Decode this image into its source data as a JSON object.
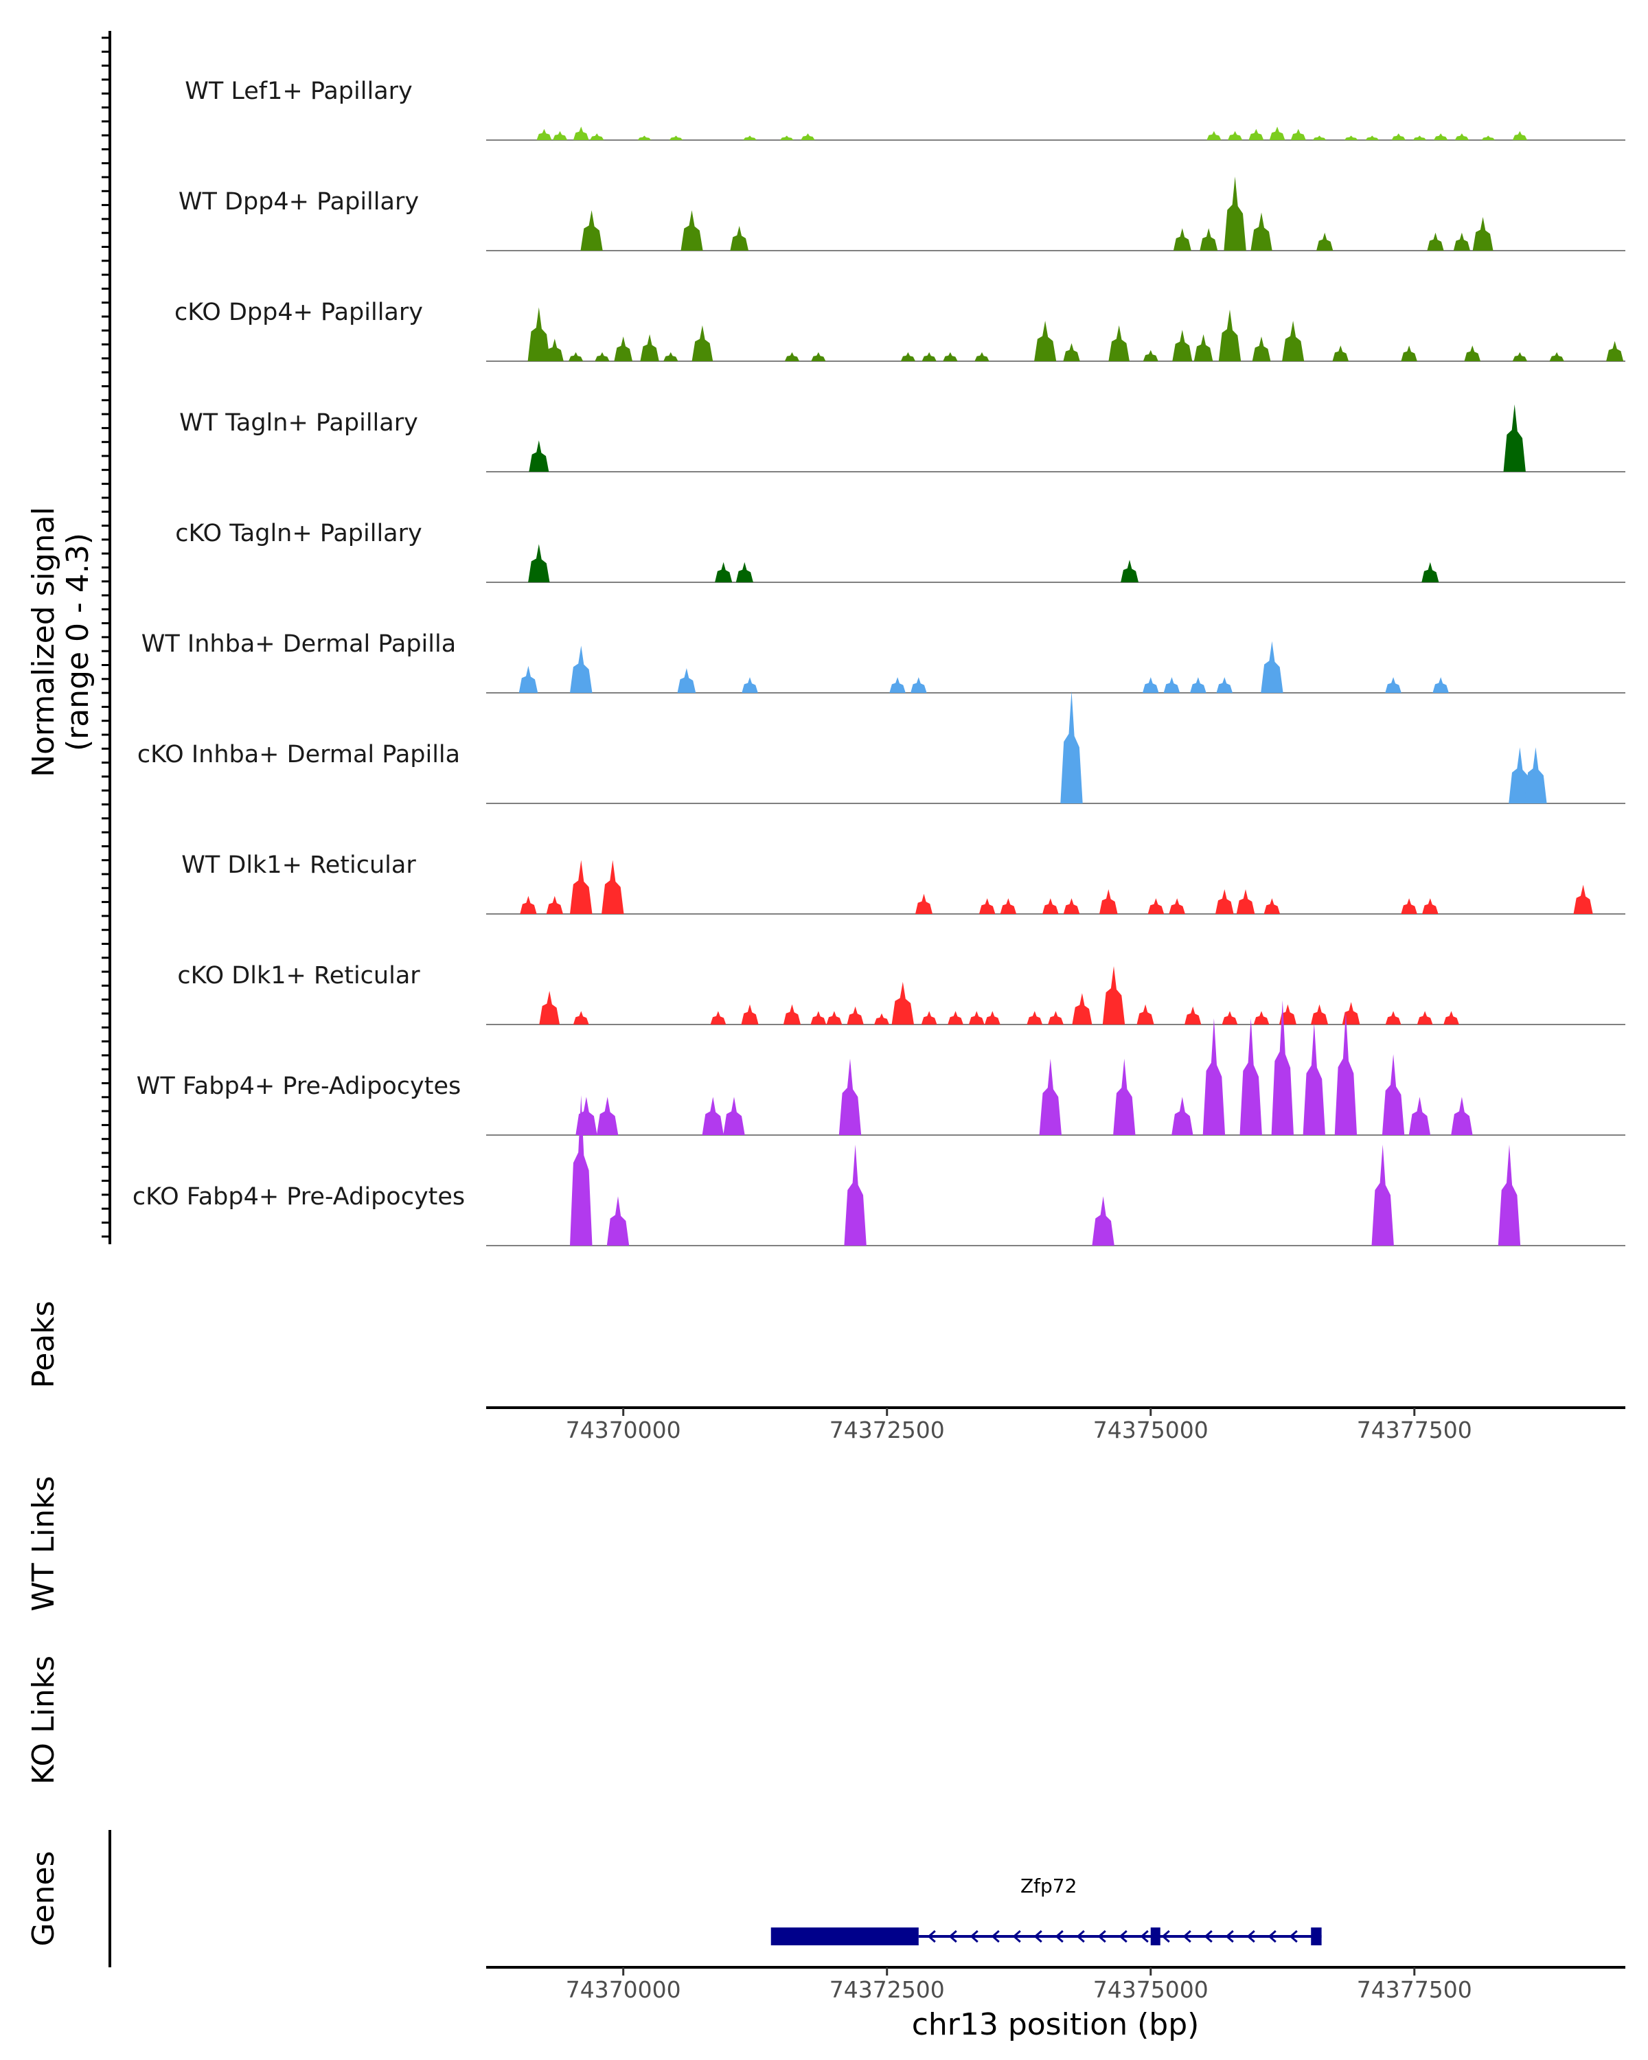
{
  "chart_data": {
    "type": "area",
    "title": "",
    "xlabel": "chr13 position (bp)",
    "ylabel": "Normalized signal\n(range 0 - 4.3)",
    "ylim": [
      0,
      4.3
    ],
    "xlim": [
      74368700,
      74379500
    ],
    "x_ticks": [
      74370000,
      74372500,
      74375000,
      74377500
    ],
    "x_tick_labels": [
      "74370000",
      "74372500",
      "74375000",
      "74377500"
    ],
    "panel_labels": {
      "peaks": "Peaks",
      "wt_links": "WT Links",
      "ko_links": "KO Links",
      "genes": "Genes"
    },
    "series": [
      {
        "name": "WT Lef1+ Papillary",
        "color": "#7CCD1F",
        "peaks": [
          [
            74369250,
            0.25
          ],
          [
            74369400,
            0.2
          ],
          [
            74369600,
            0.3
          ],
          [
            74369750,
            0.15
          ],
          [
            74370200,
            0.1
          ],
          [
            74370500,
            0.1
          ],
          [
            74371200,
            0.1
          ],
          [
            74371550,
            0.1
          ],
          [
            74371750,
            0.15
          ],
          [
            74375600,
            0.2
          ],
          [
            74375800,
            0.2
          ],
          [
            74376000,
            0.25
          ],
          [
            74376200,
            0.3
          ],
          [
            74376400,
            0.25
          ],
          [
            74376600,
            0.1
          ],
          [
            74376900,
            0.1
          ],
          [
            74377100,
            0.1
          ],
          [
            74377350,
            0.15
          ],
          [
            74377550,
            0.1
          ],
          [
            74377750,
            0.15
          ],
          [
            74377950,
            0.15
          ],
          [
            74378200,
            0.1
          ],
          [
            74378500,
            0.2
          ]
        ]
      },
      {
        "name": "WT Dpp4+ Papillary",
        "color": "#4A8A05",
        "peaks": [
          [
            74369700,
            0.9
          ],
          [
            74370650,
            0.9
          ],
          [
            74371100,
            0.55
          ],
          [
            74375300,
            0.5
          ],
          [
            74375550,
            0.5
          ],
          [
            74375800,
            1.65
          ],
          [
            74376050,
            0.85
          ],
          [
            74376650,
            0.4
          ],
          [
            74377700,
            0.4
          ],
          [
            74377950,
            0.4
          ],
          [
            74378150,
            0.75
          ]
        ]
      },
      {
        "name": "cKO Dpp4+ Papillary",
        "color": "#4A8A05",
        "peaks": [
          [
            74369200,
            1.2
          ],
          [
            74369350,
            0.5
          ],
          [
            74369550,
            0.2
          ],
          [
            74369800,
            0.2
          ],
          [
            74370000,
            0.55
          ],
          [
            74370250,
            0.6
          ],
          [
            74370450,
            0.2
          ],
          [
            74370750,
            0.8
          ],
          [
            74371600,
            0.2
          ],
          [
            74371850,
            0.2
          ],
          [
            74372700,
            0.2
          ],
          [
            74372900,
            0.2
          ],
          [
            74373100,
            0.2
          ],
          [
            74373400,
            0.2
          ],
          [
            74374000,
            0.9
          ],
          [
            74374250,
            0.4
          ],
          [
            74374700,
            0.8
          ],
          [
            74375000,
            0.25
          ],
          [
            74375300,
            0.7
          ],
          [
            74375500,
            0.6
          ],
          [
            74375750,
            1.15
          ],
          [
            74376050,
            0.55
          ],
          [
            74376350,
            0.9
          ],
          [
            74376800,
            0.35
          ],
          [
            74377450,
            0.35
          ],
          [
            74378050,
            0.35
          ],
          [
            74378500,
            0.2
          ],
          [
            74378850,
            0.2
          ],
          [
            74379400,
            0.45
          ]
        ]
      },
      {
        "name": "WT Tagln+ Papillary",
        "color": "#006400",
        "peaks": [
          [
            74369200,
            0.7
          ],
          [
            74378450,
            1.5
          ]
        ]
      },
      {
        "name": "cKO Tagln+ Papillary",
        "color": "#006400",
        "peaks": [
          [
            74369200,
            0.85
          ],
          [
            74370950,
            0.45
          ],
          [
            74371150,
            0.45
          ],
          [
            74374800,
            0.5
          ],
          [
            74377650,
            0.45
          ]
        ]
      },
      {
        "name": "WT Inhba+ Dermal Papilla",
        "color": "#56A5EC",
        "peaks": [
          [
            74369100,
            0.6
          ],
          [
            74369600,
            1.05
          ],
          [
            74370600,
            0.55
          ],
          [
            74371200,
            0.35
          ],
          [
            74372600,
            0.35
          ],
          [
            74372800,
            0.35
          ],
          [
            74375000,
            0.35
          ],
          [
            74375200,
            0.35
          ],
          [
            74375450,
            0.35
          ],
          [
            74375700,
            0.35
          ],
          [
            74376150,
            1.15
          ],
          [
            74377300,
            0.35
          ],
          [
            74377750,
            0.35
          ]
        ]
      },
      {
        "name": "cKO Inhba+ Dermal Papilla",
        "color": "#56A5EC",
        "peaks": [
          [
            74374250,
            2.5
          ],
          [
            74378500,
            1.25
          ],
          [
            74378650,
            1.25
          ]
        ]
      },
      {
        "name": "WT Dlk1+ Reticular",
        "color": "#FF2A2A",
        "peaks": [
          [
            74369100,
            0.4
          ],
          [
            74369350,
            0.4
          ],
          [
            74369600,
            1.2
          ],
          [
            74369900,
            1.2
          ],
          [
            74372850,
            0.45
          ],
          [
            74373450,
            0.35
          ],
          [
            74373650,
            0.35
          ],
          [
            74374050,
            0.35
          ],
          [
            74374250,
            0.35
          ],
          [
            74374600,
            0.55
          ],
          [
            74375050,
            0.35
          ],
          [
            74375250,
            0.35
          ],
          [
            74375700,
            0.55
          ],
          [
            74375900,
            0.55
          ],
          [
            74376150,
            0.35
          ],
          [
            74377450,
            0.35
          ],
          [
            74377650,
            0.35
          ],
          [
            74379100,
            0.65
          ]
        ]
      },
      {
        "name": "cKO Dlk1+ Reticular",
        "color": "#FF2A2A",
        "peaks": [
          [
            74369300,
            0.75
          ],
          [
            74369600,
            0.3
          ],
          [
            74370900,
            0.3
          ],
          [
            74371200,
            0.45
          ],
          [
            74371600,
            0.45
          ],
          [
            74371850,
            0.3
          ],
          [
            74372000,
            0.3
          ],
          [
            74372200,
            0.4
          ],
          [
            74372450,
            0.25
          ],
          [
            74372650,
            0.95
          ],
          [
            74372900,
            0.3
          ],
          [
            74373150,
            0.3
          ],
          [
            74373350,
            0.3
          ],
          [
            74373500,
            0.3
          ],
          [
            74373900,
            0.3
          ],
          [
            74374100,
            0.3
          ],
          [
            74374350,
            0.7
          ],
          [
            74374650,
            1.3
          ],
          [
            74374950,
            0.45
          ],
          [
            74375400,
            0.4
          ],
          [
            74375750,
            0.3
          ],
          [
            74376050,
            0.3
          ],
          [
            74376300,
            0.45
          ],
          [
            74376600,
            0.45
          ],
          [
            74376900,
            0.5
          ],
          [
            74377300,
            0.3
          ],
          [
            74377600,
            0.3
          ],
          [
            74377850,
            0.3
          ]
        ]
      },
      {
        "name": "WT Fabp4+ Pre-Adipocytes",
        "color": "#B23AEE",
        "peaks": [
          [
            74369650,
            0.85
          ],
          [
            74369850,
            0.85
          ],
          [
            74370850,
            0.85
          ],
          [
            74371050,
            0.85
          ],
          [
            74372150,
            1.7
          ],
          [
            74374050,
            1.7
          ],
          [
            74374750,
            1.7
          ],
          [
            74375300,
            0.85
          ],
          [
            74375600,
            2.6
          ],
          [
            74375950,
            2.6
          ],
          [
            74376250,
            3.0
          ],
          [
            74376550,
            2.5
          ],
          [
            74376850,
            2.75
          ],
          [
            74377300,
            1.8
          ],
          [
            74377550,
            0.85
          ],
          [
            74377950,
            0.85
          ]
        ]
      },
      {
        "name": "cKO Fabp4+ Pre-Adipocytes",
        "color": "#B23AEE",
        "peaks": [
          [
            74369600,
            3.35
          ],
          [
            74369950,
            1.1
          ],
          [
            74372200,
            2.25
          ],
          [
            74374550,
            1.1
          ],
          [
            74377200,
            2.25
          ],
          [
            74378400,
            2.25
          ]
        ]
      }
    ],
    "genes": [
      {
        "name": "Zfp72",
        "strand": "-",
        "exons": [
          [
            74371400,
            74372800
          ],
          [
            74375000,
            74375080
          ],
          [
            74376520,
            74376620
          ]
        ],
        "intron": [
          74372800,
          74376620
        ]
      }
    ]
  }
}
